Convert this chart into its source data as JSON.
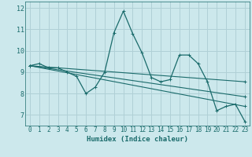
{
  "xlabel": "Humidex (Indice chaleur)",
  "ylabel": "",
  "bg_color": "#cce8ec",
  "grid_color": "#b0d0d6",
  "line_color": "#1a6b6b",
  "xlim": [
    -0.5,
    23.5
  ],
  "ylim": [
    6.5,
    12.3
  ],
  "yticks": [
    7,
    8,
    9,
    10,
    11,
    12
  ],
  "xticks": [
    0,
    1,
    2,
    3,
    4,
    5,
    6,
    7,
    8,
    9,
    10,
    11,
    12,
    13,
    14,
    15,
    16,
    17,
    18,
    19,
    20,
    21,
    22,
    23
  ],
  "series1_x": [
    0,
    1,
    2,
    3,
    4,
    5,
    6,
    7,
    8,
    9,
    10,
    11,
    12,
    13,
    14,
    15,
    16,
    17,
    18,
    19,
    20,
    21,
    22,
    23
  ],
  "series1_y": [
    9.3,
    9.4,
    9.2,
    9.2,
    9.0,
    8.8,
    8.0,
    8.3,
    9.0,
    10.85,
    11.85,
    10.8,
    9.9,
    8.75,
    8.55,
    8.65,
    9.8,
    9.8,
    9.4,
    8.55,
    7.2,
    7.4,
    7.5,
    6.7
  ],
  "series2_x": [
    0,
    23
  ],
  "series2_y": [
    9.3,
    8.55
  ],
  "series3_x": [
    0,
    23
  ],
  "series3_y": [
    9.3,
    7.85
  ],
  "series4_x": [
    0,
    23
  ],
  "series4_y": [
    9.3,
    7.4
  ]
}
